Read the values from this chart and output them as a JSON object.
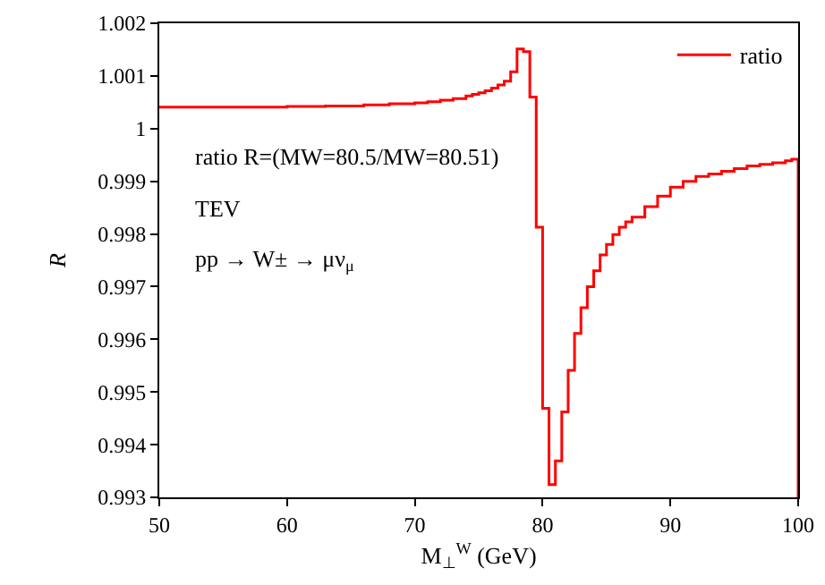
{
  "chart_data": {
    "type": "step",
    "xlabel": "M$_{⊥}$$^{W}$ (GeV)",
    "ylabel": "R",
    "annotations": [
      "ratio R=(MW=80.5/MW=80.51)",
      "TEV",
      "pp → W± → μν$_{μ}$"
    ],
    "x": [
      50,
      55,
      60,
      63,
      66,
      68,
      70,
      71,
      72,
      73,
      74,
      74.5,
      75,
      75.5,
      76,
      76.5,
      77,
      77.5,
      78,
      78.5,
      79,
      79.5,
      80,
      80.5,
      81,
      81.5,
      82,
      82.5,
      83,
      83.5,
      84,
      84.5,
      85,
      85.5,
      86,
      86.5,
      87,
      88,
      89,
      90,
      91,
      92,
      93,
      94,
      95,
      96,
      97,
      98,
      99,
      99.5,
      100
    ],
    "series": [
      {
        "name": "ratio",
        "color": "#ff0000",
        "values": [
          1.00041,
          1.00041,
          1.00042,
          1.00043,
          1.00045,
          1.00047,
          1.00049,
          1.00051,
          1.00054,
          1.00057,
          1.00062,
          1.00065,
          1.00068,
          1.00072,
          1.00077,
          1.00083,
          1.0009,
          1.00108,
          1.00151,
          1.00146,
          1.0006,
          0.99813,
          0.99469,
          0.99324,
          0.99369,
          0.99462,
          0.99541,
          0.99611,
          0.9966,
          0.997,
          0.9973,
          0.9976,
          0.9978,
          0.99799,
          0.99813,
          0.99823,
          0.99832,
          0.99852,
          0.99872,
          0.99889,
          0.999,
          0.99909,
          0.99914,
          0.99919,
          0.99924,
          0.99929,
          0.99932,
          0.99935,
          0.99939,
          0.99942,
          0.993
        ]
      }
    ],
    "xlim": [
      50,
      100
    ],
    "xticks": [
      50,
      60,
      70,
      80,
      90,
      100
    ],
    "ylim": [
      0.993,
      1.002
    ],
    "yticks": [
      0.993,
      0.994,
      0.995,
      0.996,
      0.997,
      0.998,
      0.999,
      1,
      1.001,
      1.002
    ],
    "legend": "top right",
    "marker": "none",
    "line_style": "solid"
  }
}
